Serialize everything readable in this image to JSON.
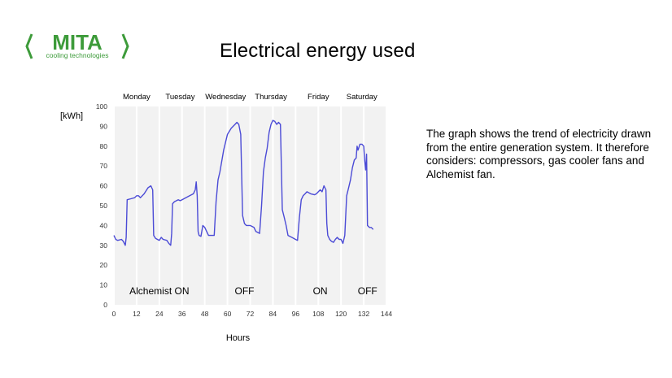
{
  "slide": {
    "title": "Electrical energy used",
    "description": "The graph shows the trend of electricity drawn from the entire generation system. It therefore considers: compressors, gas cooler fans and Alchemist fan."
  },
  "logo": {
    "brand": "MITA",
    "tagline": "cooling technologies",
    "color": "#3d9b3a"
  },
  "chart_data": {
    "type": "line",
    "title": "",
    "xlabel": "Hours",
    "ylabel": "[kWh]",
    "xlim": [
      0,
      144
    ],
    "ylim": [
      0,
      100
    ],
    "xticks": [
      0,
      12,
      24,
      36,
      48,
      60,
      72,
      84,
      96,
      108,
      120,
      132,
      144
    ],
    "yticks": [
      0,
      10,
      20,
      30,
      40,
      50,
      60,
      70,
      80,
      90,
      100
    ],
    "grid": "vertical",
    "line_color": "#4b4bd6",
    "day_labels": [
      {
        "label": "Monday",
        "x": 12
      },
      {
        "label": "Tuesday",
        "x": 35
      },
      {
        "label": "Wednesday",
        "x": 59
      },
      {
        "label": "Thursday",
        "x": 83
      },
      {
        "label": "Friday",
        "x": 108
      },
      {
        "label": "Saturday",
        "x": 131
      }
    ],
    "annotations": [
      {
        "text": "Alchemist ON",
        "x": 24,
        "y": 7
      },
      {
        "text": "OFF",
        "x": 69,
        "y": 7
      },
      {
        "text": "ON",
        "x": 109,
        "y": 7
      },
      {
        "text": "OFF",
        "x": 134,
        "y": 7
      }
    ],
    "series": [
      {
        "values": [
          [
            0,
            35
          ],
          [
            1,
            33
          ],
          [
            2,
            32.5
          ],
          [
            4,
            33
          ],
          [
            5,
            32
          ],
          [
            6,
            30
          ],
          [
            6.5,
            34
          ],
          [
            7,
            53
          ],
          [
            9,
            53.5
          ],
          [
            11,
            54
          ],
          [
            12,
            55
          ],
          [
            13,
            55
          ],
          [
            14,
            54
          ],
          [
            16,
            56
          ],
          [
            18,
            59
          ],
          [
            19.5,
            60
          ],
          [
            20.5,
            58
          ],
          [
            21,
            35
          ],
          [
            22,
            33.5
          ],
          [
            23,
            33
          ],
          [
            24,
            32.5
          ],
          [
            25,
            34
          ],
          [
            26,
            33
          ],
          [
            28,
            32.5
          ],
          [
            29,
            31
          ],
          [
            30,
            30
          ],
          [
            30.5,
            36
          ],
          [
            31,
            51
          ],
          [
            32,
            52
          ],
          [
            34,
            53
          ],
          [
            35,
            52.5
          ],
          [
            36,
            53
          ],
          [
            38,
            54
          ],
          [
            40,
            55
          ],
          [
            42,
            56
          ],
          [
            43,
            58
          ],
          [
            43.5,
            62
          ],
          [
            44,
            55
          ],
          [
            44.5,
            37
          ],
          [
            45,
            35
          ],
          [
            46,
            34.5
          ],
          [
            47,
            40
          ],
          [
            48,
            39
          ],
          [
            49,
            37
          ],
          [
            50,
            35
          ],
          [
            52,
            35
          ],
          [
            53,
            35
          ],
          [
            54,
            52
          ],
          [
            55,
            63
          ],
          [
            56,
            67
          ],
          [
            58,
            78
          ],
          [
            60,
            86
          ],
          [
            62,
            89
          ],
          [
            64,
            91
          ],
          [
            65,
            92
          ],
          [
            66,
            91
          ],
          [
            67,
            86
          ],
          [
            68,
            45
          ],
          [
            69,
            41
          ],
          [
            70,
            40
          ],
          [
            72,
            40
          ],
          [
            74,
            39
          ],
          [
            75,
            37
          ],
          [
            76,
            36.5
          ],
          [
            77,
            36
          ],
          [
            78,
            50
          ],
          [
            79,
            67
          ],
          [
            80,
            74
          ],
          [
            81,
            79
          ],
          [
            82,
            87
          ],
          [
            83,
            91
          ],
          [
            84,
            93
          ],
          [
            85,
            92.5
          ],
          [
            86,
            91
          ],
          [
            87,
            92
          ],
          [
            88,
            91
          ],
          [
            89,
            48
          ],
          [
            90,
            44
          ],
          [
            91,
            40
          ],
          [
            92,
            35
          ],
          [
            94,
            34
          ],
          [
            96,
            33
          ],
          [
            97,
            32.5
          ],
          [
            98,
            44
          ],
          [
            99,
            53
          ],
          [
            100,
            55
          ],
          [
            101,
            56
          ],
          [
            102,
            57
          ],
          [
            104,
            56
          ],
          [
            106,
            55.5
          ],
          [
            107,
            56
          ],
          [
            108,
            57
          ],
          [
            109,
            58
          ],
          [
            110,
            57
          ],
          [
            111,
            60
          ],
          [
            112,
            58
          ],
          [
            112.5,
            41
          ],
          [
            113,
            35
          ],
          [
            114,
            33
          ],
          [
            115,
            32
          ],
          [
            116,
            31.5
          ],
          [
            117,
            33
          ],
          [
            118,
            34
          ],
          [
            119,
            33
          ],
          [
            120,
            33
          ],
          [
            121,
            31
          ],
          [
            122,
            35
          ],
          [
            123,
            55
          ],
          [
            124,
            59
          ],
          [
            125,
            63
          ],
          [
            126,
            69
          ],
          [
            127,
            73
          ],
          [
            128,
            74
          ],
          [
            128.5,
            80
          ],
          [
            129,
            78
          ],
          [
            130,
            81
          ],
          [
            131,
            81
          ],
          [
            132,
            80
          ],
          [
            132.5,
            73
          ],
          [
            133,
            68
          ],
          [
            133.5,
            76
          ],
          [
            134,
            40
          ],
          [
            135,
            39
          ],
          [
            136,
            39
          ],
          [
            137,
            38
          ]
        ]
      }
    ]
  }
}
